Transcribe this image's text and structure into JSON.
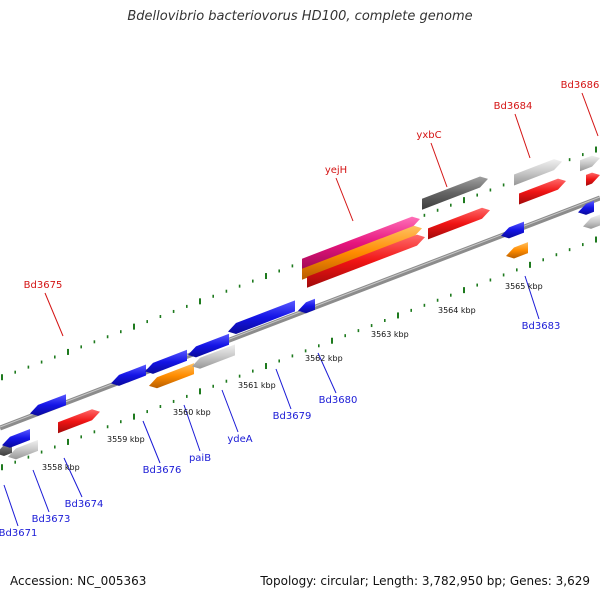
{
  "title": "Bdellovibrio bacteriovorus HD100, complete genome",
  "footer": {
    "accession": "Accession: NC_005363",
    "summary": "Topology: circular; Length: 3,782,950 bp; Genes: 3,629"
  },
  "colors": {
    "blue": "#1414e6",
    "red": "#f01414",
    "orange": "#ff8c00",
    "magenta": "#e6147d",
    "dark_gray": "#646464",
    "light_gray": "#c8c8c8",
    "backbone": "#8c8c8c",
    "tick": "#1e7a1e",
    "blue_label": "#1a1ad6",
    "red_label": "#d41414"
  },
  "scale_labels": [
    "3558 kbp",
    "3559 kbp",
    "3560 kbp",
    "3561 kbp",
    "3562 kbp",
    "3563 kbp",
    "3564 kbp",
    "3565 kbp"
  ],
  "genes_top": [
    {
      "label": "Bd3675",
      "color": "red"
    },
    {
      "label": "yejH",
      "color": "magenta"
    },
    {
      "label": "yxbC",
      "color": "dark_gray"
    },
    {
      "label": "Bd3684",
      "color": "red"
    },
    {
      "label": "Bd3686",
      "color": "red"
    }
  ],
  "genes_bottom": [
    {
      "label": "Bd3671",
      "color": "blue"
    },
    {
      "label": "Bd3673",
      "color": "light_gray"
    },
    {
      "label": "Bd3674",
      "color": "blue"
    },
    {
      "label": "Bd3676",
      "color": "blue"
    },
    {
      "label": "paiB",
      "color": "orange"
    },
    {
      "label": "ydeA",
      "color": "light_gray"
    },
    {
      "label": "Bd3679",
      "color": "blue"
    },
    {
      "label": "Bd3680",
      "color": "blue"
    },
    {
      "label": "Bd3683",
      "color": "blue"
    }
  ]
}
